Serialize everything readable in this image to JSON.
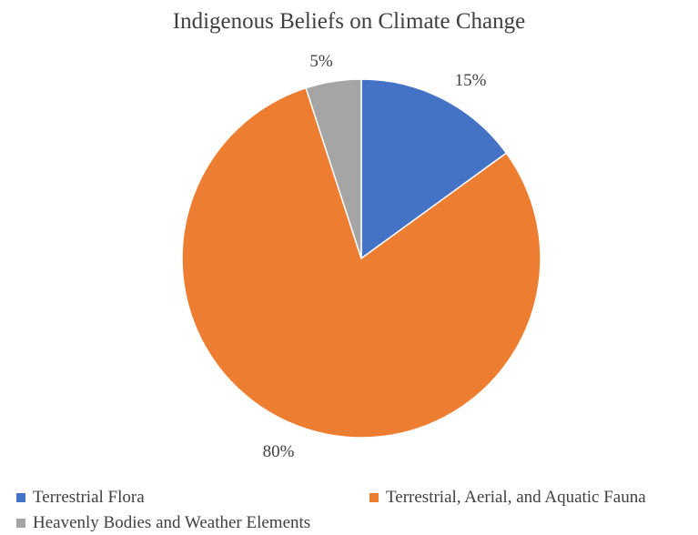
{
  "chart_data": {
    "type": "pie",
    "title": "Indigenous Beliefs on Climate Change",
    "categories": [
      "Terrestrial Flora",
      "Terrestrial, Aerial, and Aquatic Fauna",
      "Heavenly Bodies and Weather Elements"
    ],
    "values": [
      15,
      80,
      5
    ],
    "data_labels": [
      "15%",
      "80%",
      "5%"
    ],
    "colors": [
      "#4472C4",
      "#ED7D31",
      "#A5A5A5"
    ],
    "legend_position": "bottom"
  }
}
